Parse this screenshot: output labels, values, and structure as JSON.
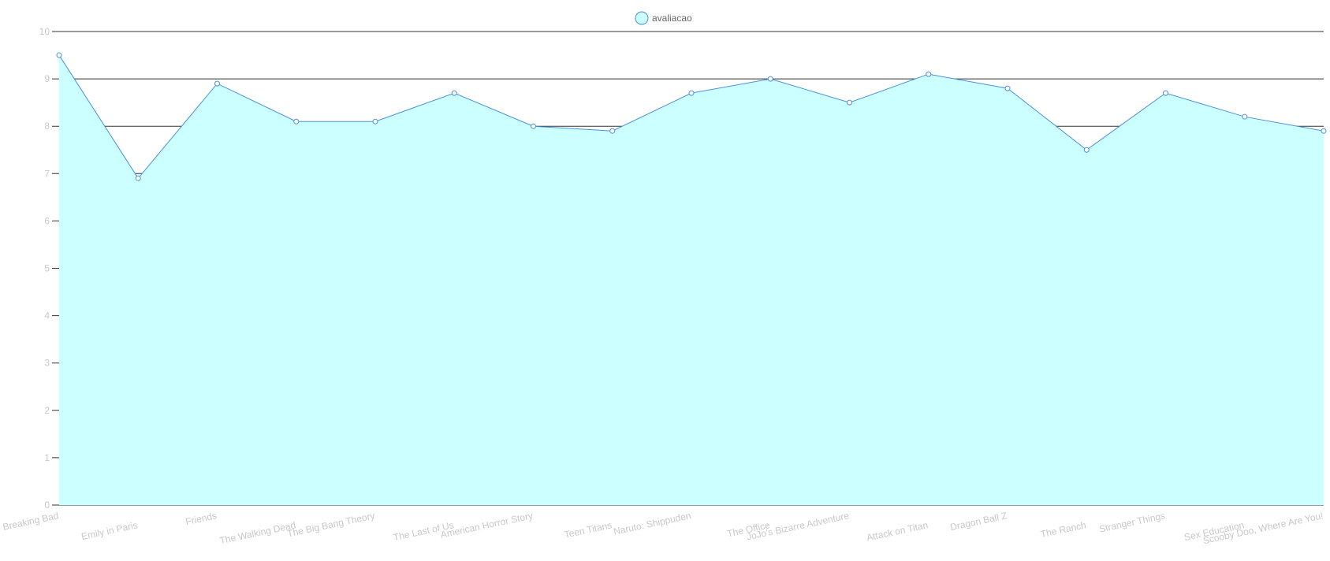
{
  "chart_data": {
    "type": "area",
    "categories": [
      "Breaking Bad",
      "Emily in Paris",
      "Friends",
      "The Walking Dead",
      "The Big Bang Theory",
      "The Last of Us",
      "American Horror Story",
      "Teen Titans",
      "Naruto: Shippuden",
      "The Office",
      "JoJo's Bizarre Adventure",
      "Attack on Titan",
      "Dragon Ball Z",
      "The Ranch",
      "Stranger Things",
      "Sex Education",
      "Scooby Doo, Where Are You!"
    ],
    "series": [
      {
        "name": "avaliacao",
        "values": [
          9.5,
          6.9,
          8.9,
          8.1,
          8.1,
          8.7,
          8.0,
          7.9,
          8.7,
          9.0,
          8.5,
          9.1,
          8.8,
          7.5,
          8.7,
          8.2,
          7.9
        ]
      }
    ],
    "ylim": [
      0,
      10
    ],
    "yticks": [
      0,
      1,
      2,
      3,
      4,
      5,
      6,
      7,
      8,
      9,
      10
    ],
    "grid": true,
    "legend_position": "top",
    "colors": {
      "fill": "#ccffff",
      "line": "#4a90d9",
      "grid": "#333333",
      "tick_text": "#c8c8c8",
      "legend_text": "#666666"
    }
  }
}
